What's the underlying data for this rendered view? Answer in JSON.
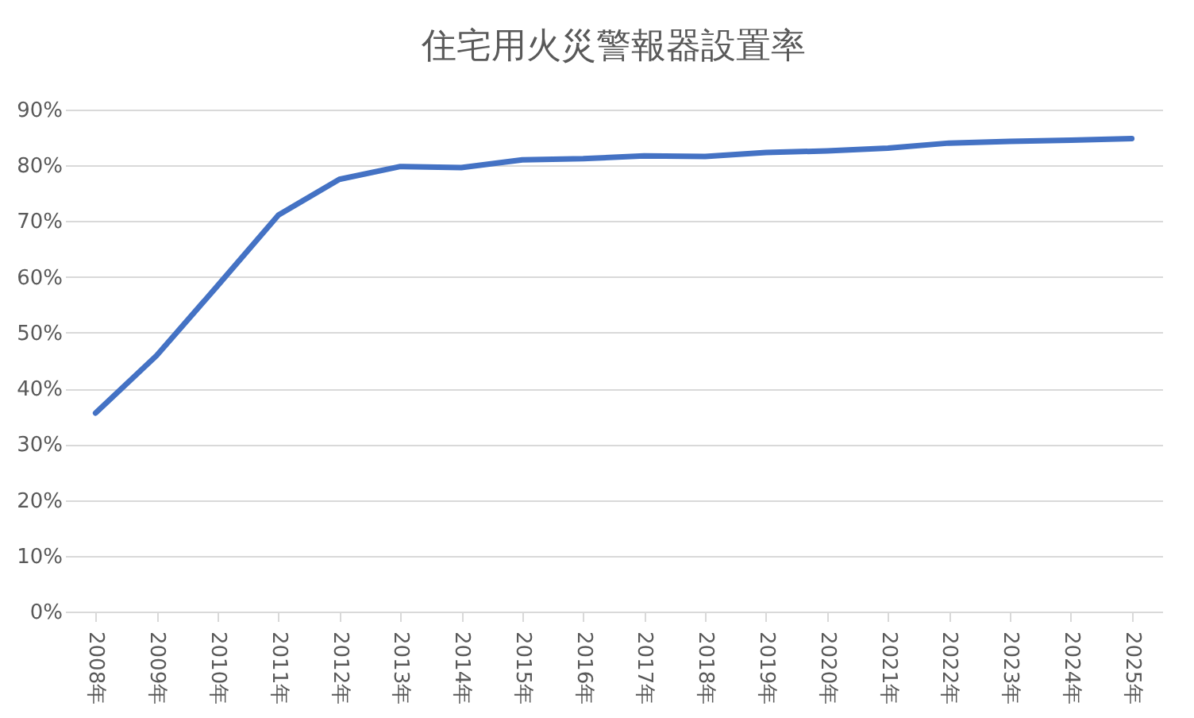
{
  "chart_data": {
    "type": "line",
    "title": "住宅用火災警報器設置率",
    "categories": [
      "2008年",
      "2009年",
      "2010年",
      "2011年",
      "2012年",
      "2013年",
      "2014年",
      "2015年",
      "2016年",
      "2017年",
      "2018年",
      "2019年",
      "2020年",
      "2021年",
      "2022年",
      "2023年",
      "2024年",
      "2025年"
    ],
    "series": [
      {
        "color": "#4472c4",
        "values": [
          35.6,
          45.9,
          58.4,
          71.1,
          77.5,
          79.8,
          79.6,
          81.0,
          81.2,
          81.7,
          81.6,
          82.3,
          82.6,
          83.1,
          84.0,
          84.3,
          84.5,
          84.8
        ]
      }
    ],
    "ylim": [
      0,
      90
    ],
    "yticks": [
      {
        "value": 0,
        "label": "0%"
      },
      {
        "value": 10,
        "label": "10%"
      },
      {
        "value": 20,
        "label": "20%"
      },
      {
        "value": 30,
        "label": "30%"
      },
      {
        "value": 40,
        "label": "40%"
      },
      {
        "value": 50,
        "label": "50%"
      },
      {
        "value": 60,
        "label": "60%"
      },
      {
        "value": 70,
        "label": "70%"
      },
      {
        "value": 80,
        "label": "80%"
      },
      {
        "value": 90,
        "label": "90%"
      }
    ],
    "grid": "y",
    "marker": "none",
    "line_style": "solid"
  }
}
